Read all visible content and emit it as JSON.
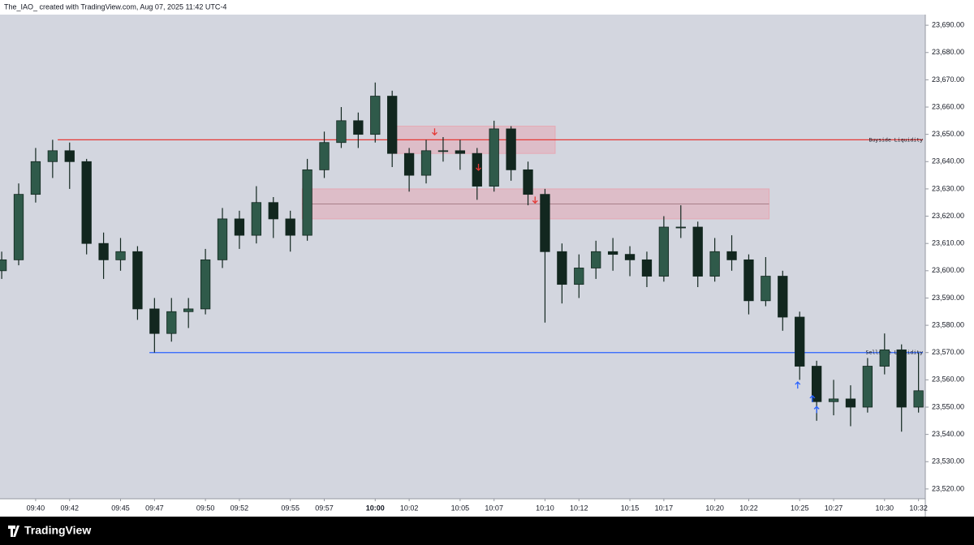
{
  "chart_data": {
    "type": "candlestick",
    "caption": "The_IAO_ created with TradingView.com, Aug 07, 2025 11:42 UTC-4",
    "watermark": "TradingView",
    "color": "#12271f",
    "x": [
      "09:38",
      "09:39",
      "09:40",
      "09:41",
      "09:42",
      "09:43",
      "09:44",
      "09:45",
      "09:46",
      "09:47",
      "09:48",
      "09:49",
      "09:50",
      "09:51",
      "09:52",
      "09:53",
      "09:54",
      "09:55",
      "09:56",
      "09:57",
      "09:58",
      "09:59",
      "10:00",
      "10:01",
      "10:02",
      "10:03",
      "10:04",
      "10:05",
      "10:06",
      "10:07",
      "10:08",
      "10:09",
      "10:10",
      "10:11",
      "10:12",
      "10:13",
      "10:14",
      "10:15",
      "10:16",
      "10:17",
      "10:18",
      "10:19",
      "10:20",
      "10:21",
      "10:22",
      "10:23",
      "10:24",
      "10:25",
      "10:26",
      "10:27",
      "10:28",
      "10:29",
      "10:30",
      "10:31",
      "10:32"
    ],
    "open": [
      23600,
      23604,
      23628,
      23640,
      23644,
      23640,
      23610,
      23604,
      23607,
      23586,
      23577,
      23585,
      23586,
      23604,
      23619,
      23613,
      23625,
      23619,
      23613,
      23637,
      23647,
      23655,
      23650,
      23664,
      23643,
      23635,
      23644,
      23644,
      23643,
      23631,
      23652,
      23637,
      23628,
      23607,
      23595,
      23601,
      23607,
      23606,
      23604,
      23598,
      23616,
      23616,
      23598,
      23607,
      23604,
      23589,
      23598,
      23583,
      23565,
      23552,
      23553,
      23550,
      23565,
      23571,
      23550
    ],
    "high": [
      23607,
      23632,
      23645,
      23648,
      23647,
      23641,
      23614,
      23612,
      23609,
      23590,
      23590,
      23590,
      23608,
      23623,
      23622,
      23631,
      23627,
      23622,
      23641,
      23651,
      23660,
      23658,
      23669,
      23666,
      23645,
      23648,
      23649,
      23648,
      23645,
      23655,
      23653,
      23640,
      23630,
      23610,
      23606,
      23611,
      23612,
      23609,
      23607,
      23620,
      23624,
      23618,
      23612,
      23613,
      23606,
      23605,
      23600,
      23585,
      23567,
      23560,
      23558,
      23568,
      23577,
      23573,
      23570
    ],
    "low": [
      23597,
      23602,
      23625,
      23634,
      23630,
      23606,
      23597,
      23600,
      23582,
      23570,
      23574,
      23579,
      23584,
      23601,
      23608,
      23610,
      23612,
      23607,
      23611,
      23634,
      23645,
      23645,
      23647,
      23638,
      23629,
      23632,
      23640,
      23637,
      23626,
      23629,
      23633,
      23624,
      23581,
      23588,
      23590,
      23597,
      23600,
      23598,
      23594,
      23596,
      23612,
      23594,
      23596,
      23600,
      23584,
      23587,
      23578,
      23560,
      23545,
      23547,
      23543,
      23548,
      23562,
      23541,
      23548
    ],
    "close": [
      23604,
      23628,
      23640,
      23644,
      23640,
      23610,
      23604,
      23607,
      23586,
      23577,
      23585,
      23586,
      23604,
      23619,
      23613,
      23625,
      23619,
      23613,
      23637,
      23647,
      23655,
      23650,
      23664,
      23643,
      23635,
      23644,
      23644,
      23643,
      23631,
      23652,
      23637,
      23628,
      23607,
      23595,
      23601,
      23607,
      23606,
      23604,
      23598,
      23616,
      23616,
      23598,
      23607,
      23604,
      23589,
      23598,
      23583,
      23565,
      23552,
      23553,
      23550,
      23565,
      23571,
      23550,
      23556
    ],
    "xlim": [
      "09:37:54",
      "10:32:24"
    ],
    "xticks": [
      "09:40",
      "09:42",
      "09:45",
      "09:47",
      "09:50",
      "09:52",
      "09:55",
      "09:57",
      "10:00",
      "10:02",
      "10:05",
      "10:07",
      "10:10",
      "10:12",
      "10:15",
      "10:17",
      "10:20",
      "10:22",
      "10:25",
      "10:27",
      "10:30",
      "10:32"
    ],
    "ylim": [
      23516.4,
      23693.9
    ],
    "yticks": [
      {
        "value": 23520,
        "label": "23,520.00"
      },
      {
        "value": 23530,
        "label": "23,530.00"
      },
      {
        "value": 23540,
        "label": "23,540.00"
      },
      {
        "value": 23550,
        "label": "23,550.00"
      },
      {
        "value": 23560,
        "label": "23,560.00"
      },
      {
        "value": 23570,
        "label": "23,570.00"
      },
      {
        "value": 23580,
        "label": "23,580.00"
      },
      {
        "value": 23590,
        "label": "23,590.00"
      },
      {
        "value": 23600,
        "label": "23,600.00"
      },
      {
        "value": 23610,
        "label": "23,610.00"
      },
      {
        "value": 23620,
        "label": "23,620.00"
      },
      {
        "value": 23630,
        "label": "23,630.00"
      },
      {
        "value": 23640,
        "label": "23,640.00"
      },
      {
        "value": 23650,
        "label": "23,650.00"
      },
      {
        "value": 23660,
        "label": "23,660.00"
      },
      {
        "value": 23670,
        "label": "23,670.00"
      },
      {
        "value": 23680,
        "label": "23,680.00"
      },
      {
        "value": 23690,
        "label": "23,690.00"
      }
    ],
    "zones": [
      {
        "xlim": [
          "10:01:00",
          "10:10:36"
        ],
        "ylim": [
          23643,
          23653
        ],
        "color": "#e8a0ad"
      },
      {
        "xlim": [
          "09:55:42",
          "10:23:12"
        ],
        "ylim": [
          23619,
          23630
        ],
        "color": "#e8a0ad"
      }
    ],
    "levels": [
      {
        "name": "Buyside Liquidity",
        "value": 23648,
        "start": "09:41:18",
        "color": "#e53935"
      },
      {
        "name": "Sellside Liquidity",
        "value": 23570,
        "start": "09:46:42",
        "color": "#2962ff"
      }
    ],
    "signals": [
      {
        "x": "10:03:30",
        "y": 23651,
        "direction": "down",
        "color": "#e53935"
      },
      {
        "x": "10:06:05",
        "y": 23638,
        "direction": "down",
        "color": "#e53935"
      },
      {
        "x": "10:09:25",
        "y": 23626,
        "direction": "down",
        "color": "#e53935"
      },
      {
        "x": "10:24:53",
        "y": 23558,
        "direction": "up",
        "color": "#2962ff"
      },
      {
        "x": "10:25:45",
        "y": 23553,
        "direction": "up",
        "color": "#2962ff"
      },
      {
        "x": "10:26:00",
        "y": 23549,
        "direction": "up",
        "color": "#2962ff"
      }
    ]
  }
}
